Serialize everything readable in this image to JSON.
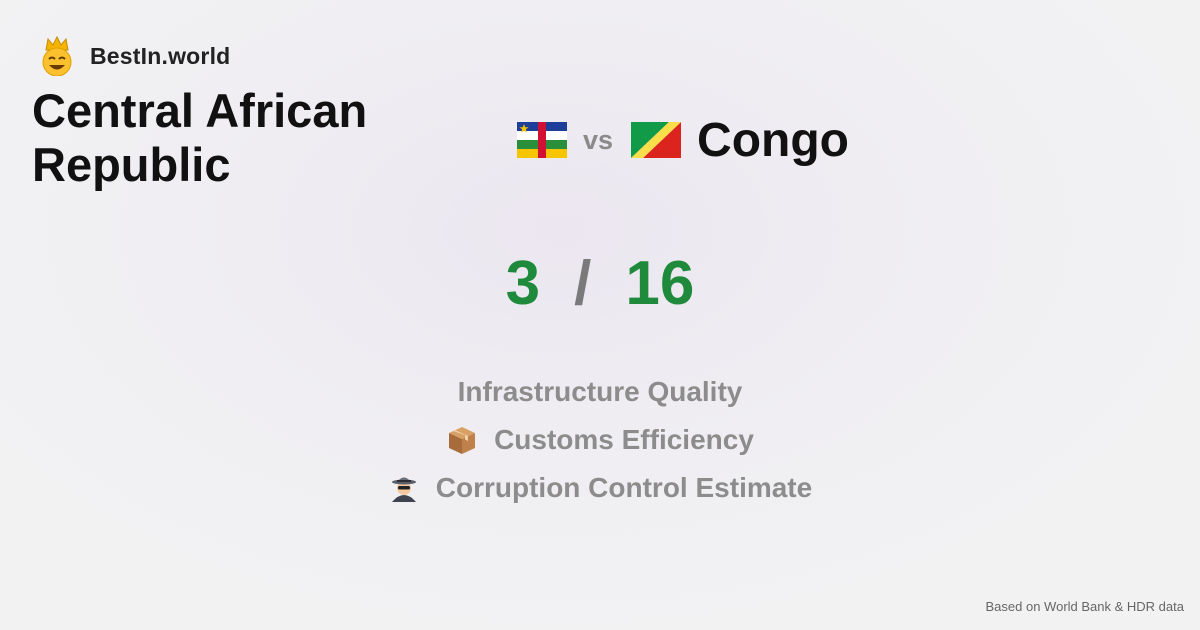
{
  "brand": {
    "name": "BestIn.world",
    "icon": "smiling-crown-icon"
  },
  "comparison": {
    "left": {
      "name": "Central African Republic",
      "flag": "central-african-republic-flag-icon"
    },
    "vs_label": "vs",
    "right": {
      "name": "Congo",
      "flag": "congo-flag-icon"
    }
  },
  "score": {
    "left": "3",
    "separator": "/",
    "right": "16"
  },
  "metrics": [
    {
      "label": "Infrastructure Quality",
      "icon": ""
    },
    {
      "label": "Customs Efficiency",
      "icon": "package-icon"
    },
    {
      "label": "Corruption Control Estimate",
      "icon": "detective-icon"
    }
  ],
  "footer": {
    "source": "Based on World Bank & HDR data"
  },
  "colors": {
    "score": "#1f8a3b",
    "muted": "#8c8c8c"
  }
}
